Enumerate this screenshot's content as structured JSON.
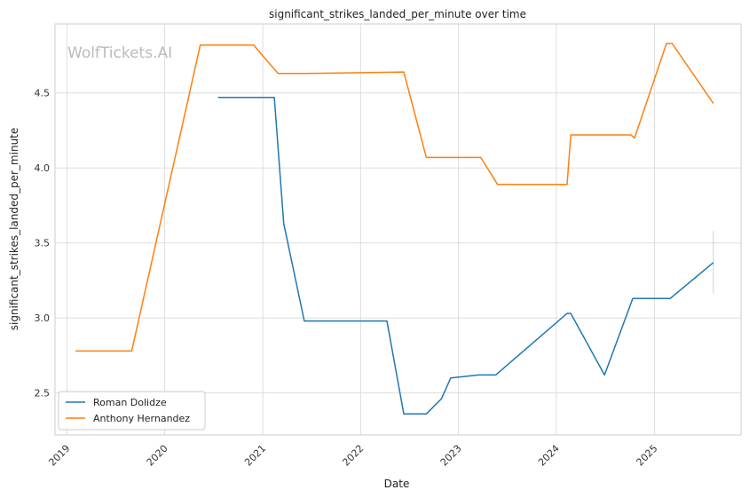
{
  "chart_data": {
    "type": "line",
    "title": "significant_strikes_landed_per_minute over time",
    "xlabel": "Date",
    "ylabel": "significant_strikes_landed_per_minute",
    "watermark": "WolfTickets.AI",
    "x_ticks": [
      "2019",
      "2020",
      "2021",
      "2022",
      "2023",
      "2024",
      "2025"
    ],
    "y_ticks": [
      "2.5",
      "3.0",
      "3.5",
      "4.0",
      "4.5"
    ],
    "xlim": [
      "2018-11-18",
      "2025-11-20"
    ],
    "ylim": [
      2.22,
      4.96
    ],
    "grid": true,
    "legend_position": "lower-left",
    "series": [
      {
        "name": "Roman Dolidze",
        "color": "#1f77b4",
        "points": [
          [
            "2020-07-18",
            4.47
          ],
          [
            "2021-02-13",
            4.47
          ],
          [
            "2021-03-20",
            3.63
          ],
          [
            "2021-06-05",
            2.98
          ],
          [
            "2022-04-09",
            2.98
          ],
          [
            "2022-06-11",
            2.36
          ],
          [
            "2022-09-03",
            2.36
          ],
          [
            "2022-10-29",
            2.46
          ],
          [
            "2022-12-03",
            2.6
          ],
          [
            "2023-03-18",
            2.62
          ],
          [
            "2023-05-20",
            2.62
          ],
          [
            "2024-02-10",
            3.03
          ],
          [
            "2024-02-24",
            3.03
          ],
          [
            "2024-06-29",
            2.62
          ],
          [
            "2024-10-12",
            3.13
          ],
          [
            "2025-03-01",
            3.13
          ],
          [
            "2025-08-09",
            3.37
          ]
        ]
      },
      {
        "name": "Anthony Hernandez",
        "color": "#ff7f0e",
        "points": [
          [
            "2019-02-02",
            2.78
          ],
          [
            "2019-08-31",
            2.78
          ],
          [
            "2020-05-13",
            4.82
          ],
          [
            "2020-11-28",
            4.82
          ],
          [
            "2021-02-27",
            4.63
          ],
          [
            "2021-06-05",
            4.63
          ],
          [
            "2022-06-11",
            4.64
          ],
          [
            "2022-09-03",
            4.07
          ],
          [
            "2023-03-25",
            4.07
          ],
          [
            "2023-05-27",
            3.89
          ],
          [
            "2024-02-10",
            3.89
          ],
          [
            "2024-02-24",
            4.22
          ],
          [
            "2024-10-05",
            4.22
          ],
          [
            "2024-10-19",
            4.2
          ],
          [
            "2025-02-15",
            4.83
          ],
          [
            "2025-03-08",
            4.83
          ],
          [
            "2025-08-09",
            4.43
          ]
        ]
      }
    ],
    "error_bar": {
      "x": "2025-08-09",
      "low": 3.16,
      "high": 3.58
    }
  }
}
